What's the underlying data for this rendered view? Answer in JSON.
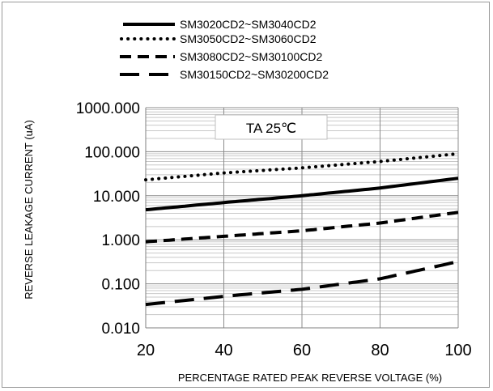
{
  "chart_data": {
    "type": "line",
    "xlabel": "PERCENTAGE RATED PEAK REVERSE VOLTAGE (%)",
    "ylabel": "REVERSE LEAKAGE CURRENT (uA)",
    "annotation": "TA 25℃",
    "x_ticks": [
      "20",
      "40",
      "60",
      "80",
      "100"
    ],
    "y_ticks": [
      "0.010",
      "0.100",
      "1.000",
      "10.000",
      "100.000",
      "1000.000"
    ],
    "xlim": [
      20,
      100
    ],
    "ylim": [
      0.01,
      1000
    ],
    "y_scale": "log",
    "grid": true,
    "legend_position": "top",
    "series": [
      {
        "name": "SM3020CD2~SM3040CD2",
        "style": "solid",
        "x": [
          20,
          40,
          60,
          80,
          100
        ],
        "y": [
          4.8,
          7.0,
          10.0,
          15.0,
          25.0
        ]
      },
      {
        "name": "SM3050CD2~SM3060CD2",
        "style": "dotted",
        "x": [
          20,
          40,
          60,
          80,
          100
        ],
        "y": [
          23.0,
          33.0,
          43.0,
          60.0,
          90.0
        ]
      },
      {
        "name": "SM3080CD2~SM30100CD2",
        "style": "dashed",
        "x": [
          20,
          40,
          60,
          80,
          100
        ],
        "y": [
          0.9,
          1.2,
          1.6,
          2.4,
          4.2
        ]
      },
      {
        "name": "SM30150CD2~SM30200CD2",
        "style": "long-dashed",
        "x": [
          20,
          40,
          60,
          80,
          100
        ],
        "y": [
          0.034,
          0.052,
          0.075,
          0.13,
          0.32
        ]
      }
    ]
  }
}
